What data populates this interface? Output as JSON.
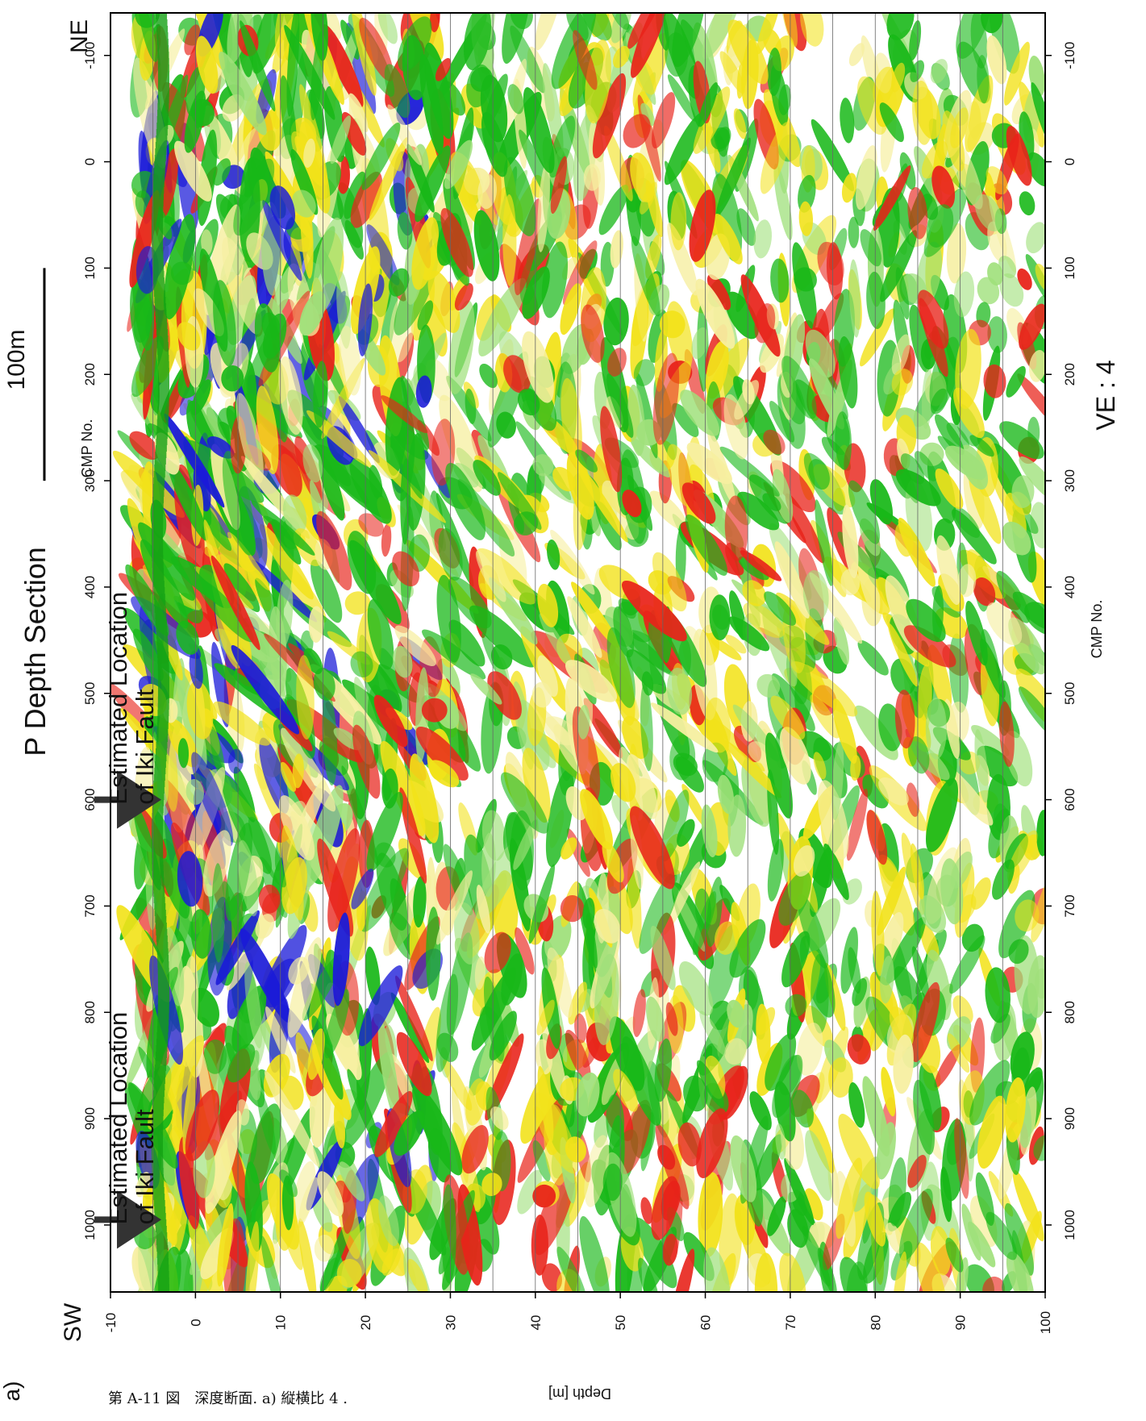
{
  "title": "P Depth Section",
  "scale_bar": {
    "label": "100m",
    "from": 100,
    "to": 300
  },
  "chart_data": {
    "type": "seismic-section",
    "xlabel": "Depth [m]",
    "ylabel": "CMP No.",
    "ylabel_right": "CMP No.",
    "xlim": [
      -10,
      100
    ],
    "xticks": [
      -10,
      0,
      10,
      20,
      30,
      40,
      50,
      60,
      70,
      80,
      90,
      100
    ],
    "xgrid": [
      -5,
      0,
      5,
      10,
      15,
      20,
      25,
      30,
      35,
      40,
      45,
      50,
      55,
      60,
      65,
      70,
      75,
      80,
      85,
      90,
      95
    ],
    "ylim": [
      -140,
      1063
    ],
    "yticks": [
      -100,
      0,
      100,
      200,
      300,
      400,
      500,
      600,
      700,
      800,
      900,
      1000
    ],
    "top_label": "NE",
    "bottom_label": "SW",
    "note": "VE : 4",
    "annotations": [
      {
        "text": [
          "Estimated Location",
          "of Iki Fault"
        ],
        "cmp": 600
      },
      {
        "text": [
          "Estimated Location",
          "of Iki Fault"
        ],
        "cmp": 995
      }
    ]
  },
  "panel_label": "a)",
  "caption": "第 A-11 図　深度断面.  a) 縦横比 4 ."
}
